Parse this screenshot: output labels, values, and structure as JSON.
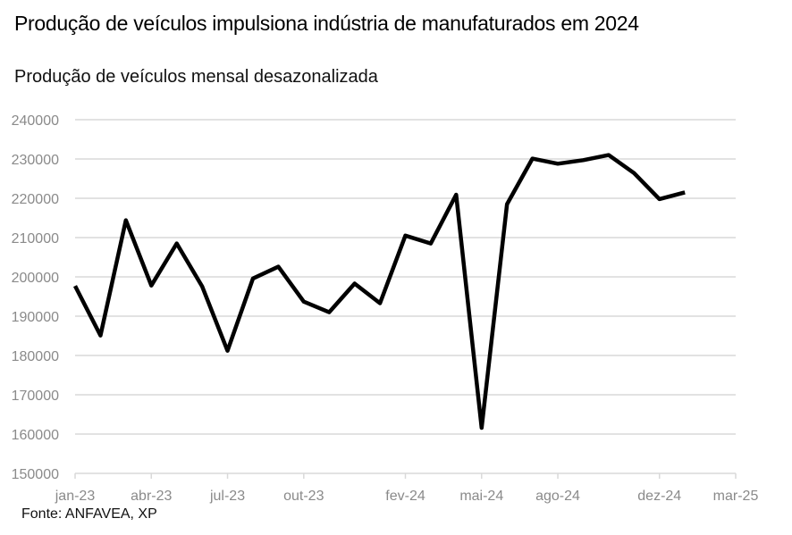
{
  "header": {
    "title": "Produção de veículos impulsiona indústria de manufaturados em 2024",
    "subtitle": "Produção de veículos mensal desazonalizada"
  },
  "footer": {
    "source": "Fonte: ANFAVEA, XP"
  },
  "colors": {
    "line": "#000000",
    "grid": "#d9d9d9",
    "tick_text": "#8a8a8a"
  },
  "chart_data": {
    "type": "line",
    "title": "Produção de veículos impulsiona indústria de manufaturados em 2024",
    "subtitle": "Produção de veículos mensal desazonalizada",
    "xlabel": "",
    "ylabel": "",
    "ylim": [
      150000,
      240000
    ],
    "yticks": [
      150000,
      160000,
      170000,
      180000,
      190000,
      200000,
      210000,
      220000,
      230000,
      240000
    ],
    "xlim": [
      "2023-01",
      "2025-03"
    ],
    "xticks": [
      {
        "label": "jan-23",
        "date": "2023-01"
      },
      {
        "label": "abr-23",
        "date": "2023-04"
      },
      {
        "label": "jul-23",
        "date": "2023-07"
      },
      {
        "label": "out-23",
        "date": "2023-10"
      },
      {
        "label": "fev-24",
        "date": "2024-02"
      },
      {
        "label": "mai-24",
        "date": "2024-05"
      },
      {
        "label": "ago-24",
        "date": "2024-08"
      },
      {
        "label": "dez-24",
        "date": "2024-12"
      },
      {
        "label": "mar-25",
        "date": "2025-03"
      }
    ],
    "grid": true,
    "legend": "none",
    "series": [
      {
        "x": [
          "2023-01",
          "2023-02",
          "2023-03",
          "2023-04",
          "2023-05",
          "2023-06",
          "2023-07",
          "2023-08",
          "2023-09",
          "2023-10",
          "2023-11",
          "2023-12",
          "2024-01",
          "2024-02",
          "2024-03",
          "2024-04",
          "2024-05",
          "2024-06",
          "2024-07",
          "2024-08",
          "2024-09",
          "2024-10",
          "2024-11",
          "2024-12",
          "2025-01"
        ],
        "values": [
          197700,
          185100,
          214400,
          197800,
          208500,
          197600,
          181200,
          199600,
          202600,
          193700,
          191000,
          198300,
          193300,
          210500,
          208500,
          220900,
          161600,
          218500,
          230100,
          228800,
          229700,
          231000,
          226400,
          219800,
          221500
        ]
      }
    ]
  }
}
